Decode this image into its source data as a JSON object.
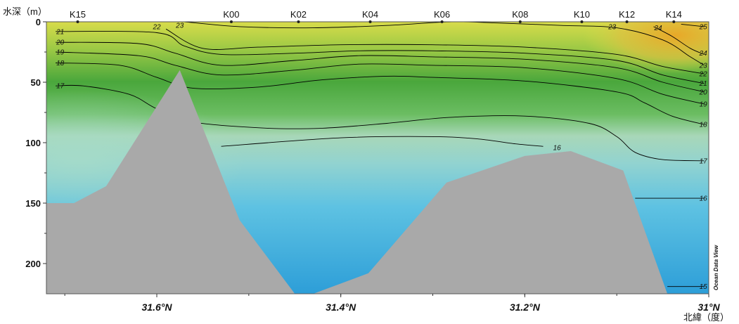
{
  "chart_data": {
    "type": "contour_section",
    "ylabel": "水深（m）",
    "xlabel": "北緯（度）",
    "y_range": [
      0,
      225
    ],
    "y_ticks": [
      "0",
      "50",
      "100",
      "150",
      "200"
    ],
    "y_tick_values": [
      0,
      50,
      100,
      150,
      200
    ],
    "x_range": [
      31.72,
      31.0
    ],
    "x_ticks": [
      "31.6°N",
      "31.4°N",
      "31.2°N",
      "31°N"
    ],
    "x_tick_values": [
      31.6,
      31.4,
      31.2,
      31.0
    ],
    "stations": [
      {
        "name": "K15",
        "lat": 31.686
      },
      {
        "name": "K00",
        "lat": 31.519
      },
      {
        "name": "K02",
        "lat": 31.446
      },
      {
        "name": "K04",
        "lat": 31.368
      },
      {
        "name": "K06",
        "lat": 31.29
      },
      {
        "name": "K08",
        "lat": 31.205
      },
      {
        "name": "K10",
        "lat": 31.138
      },
      {
        "name": "K12",
        "lat": 31.089
      },
      {
        "name": "K14",
        "lat": 31.038
      }
    ],
    "contours": [
      {
        "label": "25",
        "points": [
          [
            31.03,
            2
          ],
          [
            31.005,
            4
          ]
        ]
      },
      {
        "label": "24",
        "points": [
          [
            31.06,
            4
          ],
          [
            31.04,
            12
          ],
          [
            31.02,
            22
          ],
          [
            31.005,
            27
          ]
        ]
      },
      {
        "label": "23",
        "points": [
          [
            31.57,
            0
          ],
          [
            31.51,
            4
          ],
          [
            31.43,
            5
          ],
          [
            31.35,
            3
          ],
          [
            31.28,
            0
          ],
          [
            31.23,
            1
          ],
          [
            31.16,
            3
          ],
          [
            31.1,
            5
          ],
          [
            31.05,
            15
          ],
          [
            31.02,
            29
          ],
          [
            31.005,
            36
          ]
        ]
      },
      {
        "label": "22",
        "points": [
          [
            31.59,
            6
          ],
          [
            31.55,
            22
          ],
          [
            31.49,
            21
          ],
          [
            31.4,
            19
          ],
          [
            31.3,
            19
          ],
          [
            31.2,
            21
          ],
          [
            31.1,
            27
          ],
          [
            31.05,
            37
          ],
          [
            31.005,
            43
          ]
        ]
      },
      {
        "label": "21",
        "points": [
          [
            31.71,
            8
          ],
          [
            31.6,
            9
          ],
          [
            31.57,
            20
          ],
          [
            31.53,
            27
          ],
          [
            31.45,
            26
          ],
          [
            31.38,
            24
          ],
          [
            31.3,
            24
          ],
          [
            31.2,
            26
          ],
          [
            31.1,
            32
          ],
          [
            31.05,
            44
          ],
          [
            31.005,
            51
          ]
        ]
      },
      {
        "label": "20",
        "points": [
          [
            31.71,
            17
          ],
          [
            31.62,
            18
          ],
          [
            31.58,
            26
          ],
          [
            31.53,
            36
          ],
          [
            31.45,
            32
          ],
          [
            31.38,
            28
          ],
          [
            31.3,
            29
          ],
          [
            31.2,
            31
          ],
          [
            31.1,
            38
          ],
          [
            31.05,
            50
          ],
          [
            31.005,
            58
          ]
        ]
      },
      {
        "label": "19",
        "points": [
          [
            31.71,
            25
          ],
          [
            31.62,
            28
          ],
          [
            31.58,
            36
          ],
          [
            31.53,
            44
          ],
          [
            31.45,
            40
          ],
          [
            31.38,
            35
          ],
          [
            31.3,
            36
          ],
          [
            31.2,
            38
          ],
          [
            31.1,
            47
          ],
          [
            31.05,
            60
          ],
          [
            31.005,
            68
          ]
        ]
      },
      {
        "label": "18",
        "points": [
          [
            31.71,
            34
          ],
          [
            31.64,
            36
          ],
          [
            31.6,
            46
          ],
          [
            31.56,
            55
          ],
          [
            31.49,
            54
          ],
          [
            31.42,
            48
          ],
          [
            31.35,
            45
          ],
          [
            31.3,
            46
          ],
          [
            31.2,
            49
          ],
          [
            31.1,
            58
          ],
          [
            31.07,
            67
          ],
          [
            31.04,
            78
          ],
          [
            31.005,
            85
          ]
        ]
      },
      {
        "label": "17",
        "points": [
          [
            31.71,
            53
          ],
          [
            31.68,
            53
          ],
          [
            31.63,
            60
          ],
          [
            31.6,
            72
          ],
          [
            31.56,
            83
          ],
          [
            31.48,
            88
          ],
          [
            31.42,
            88
          ],
          [
            31.35,
            84
          ],
          [
            31.28,
            79
          ],
          [
            31.2,
            78
          ],
          [
            31.13,
            84
          ],
          [
            31.1,
            95
          ],
          [
            31.08,
            108
          ],
          [
            31.05,
            114
          ],
          [
            31.005,
            115
          ]
        ]
      },
      {
        "label": "16",
        "points": [
          [
            31.53,
            103
          ],
          [
            31.4,
            96
          ],
          [
            31.3,
            95
          ],
          [
            31.25,
            97
          ],
          [
            31.21,
            101
          ],
          [
            31.18,
            103
          ]
        ]
      },
      {
        "label": "16",
        "points": [
          [
            31.08,
            146
          ],
          [
            31.005,
            146
          ]
        ]
      },
      {
        "label": "15",
        "points": [
          [
            31.045,
            219
          ],
          [
            31.005,
            219
          ]
        ]
      }
    ],
    "contour_label_positions": [
      {
        "label": "22",
        "lat": 31.6,
        "depth": 4
      },
      {
        "label": "23",
        "lat": 31.575,
        "depth": 3
      },
      {
        "label": "23",
        "lat": 31.105,
        "depth": 4
      },
      {
        "label": "24",
        "lat": 31.055,
        "depth": 5
      },
      {
        "label": "25",
        "lat": 31.006,
        "depth": 4
      },
      {
        "label": "21",
        "lat": 31.705,
        "depth": 8
      },
      {
        "label": "20",
        "lat": 31.705,
        "depth": 17
      },
      {
        "label": "19",
        "lat": 31.705,
        "depth": 25
      },
      {
        "label": "18",
        "lat": 31.705,
        "depth": 34
      },
      {
        "label": "17",
        "lat": 31.705,
        "depth": 53
      },
      {
        "label": "24",
        "lat": 31.006,
        "depth": 26
      },
      {
        "label": "23",
        "lat": 31.006,
        "depth": 36
      },
      {
        "label": "22",
        "lat": 31.006,
        "depth": 43
      },
      {
        "label": "21",
        "lat": 31.006,
        "depth": 51
      },
      {
        "label": "20",
        "lat": 31.006,
        "depth": 58
      },
      {
        "label": "19",
        "lat": 31.006,
        "depth": 68
      },
      {
        "label": "18",
        "lat": 31.006,
        "depth": 85
      },
      {
        "label": "17",
        "lat": 31.006,
        "depth": 115
      },
      {
        "label": "16",
        "lat": 31.006,
        "depth": 146
      },
      {
        "label": "15",
        "lat": 31.006,
        "depth": 219
      },
      {
        "label": "16",
        "lat": 31.165,
        "depth": 104
      }
    ],
    "bathymetry": [
      [
        31.72,
        150
      ],
      [
        31.69,
        150
      ],
      [
        31.655,
        136
      ],
      [
        31.575,
        40
      ],
      [
        31.51,
        164
      ],
      [
        31.45,
        225
      ],
      [
        31.43,
        225
      ],
      [
        31.37,
        208
      ],
      [
        31.285,
        133
      ],
      [
        31.2,
        111
      ],
      [
        31.15,
        107
      ],
      [
        31.093,
        123
      ],
      [
        31.045,
        225
      ],
      [
        31.0,
        225
      ]
    ],
    "colors": {
      "warm": "#e8a828",
      "yellow": "#d8dc4a",
      "green": "#4aa73c",
      "mid_green": "#8dca7a",
      "teal": "#92d3d0",
      "light_blue": "#5ec2e2",
      "blue": "#2d9ed8",
      "bottom": "#a9a9a9",
      "contour": "#000000"
    },
    "watermark": "Ocean Data View"
  }
}
